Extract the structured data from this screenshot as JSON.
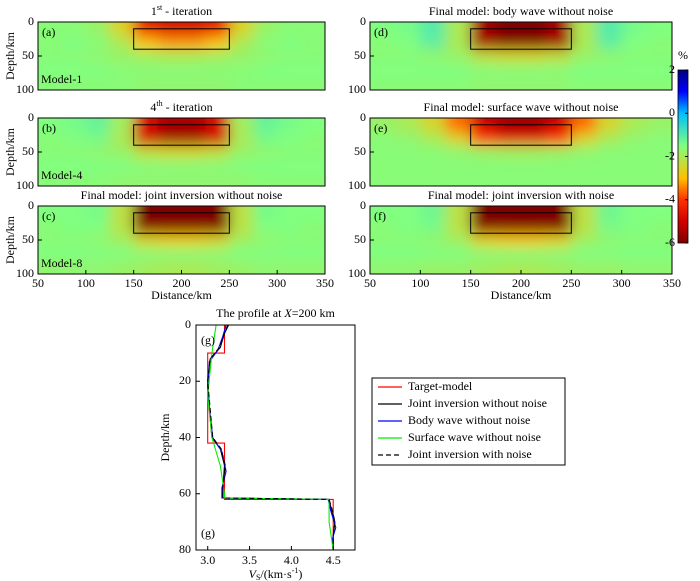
{
  "chart_data": [
    {
      "type": "heatmap",
      "title": {
        "pre": "1",
        "sup": "st",
        "post": " - iteration"
      },
      "panel_label": "(a)",
      "model_label": "Model-1",
      "ylabel": "Depth/km",
      "xlim": [
        50,
        350
      ],
      "ylim": [
        100,
        0
      ],
      "yticks": [
        0,
        50,
        100
      ],
      "box": {
        "x": [
          150,
          250
        ],
        "y": [
          10,
          40
        ]
      },
      "z": [
        [
          -1.6,
          -1.6,
          -1.8,
          -2.6,
          -4.5,
          -4.9,
          -4.9,
          -4.5,
          -2.6,
          -1.8,
          -1.6,
          -1.6
        ],
        [
          -1.6,
          -1.5,
          -1.6,
          -2.0,
          -3.0,
          -3.3,
          -3.3,
          -3.0,
          -2.0,
          -1.6,
          -1.5,
          -1.6
        ],
        [
          -1.6,
          -1.6,
          -1.7,
          -1.8,
          -1.9,
          -2.0,
          -2.0,
          -1.9,
          -1.8,
          -1.7,
          -1.6,
          -1.6
        ],
        [
          -1.5,
          -1.5,
          -1.5,
          -1.6,
          -1.6,
          -1.6,
          -1.6,
          -1.6,
          -1.6,
          -1.5,
          -1.5,
          -1.5
        ],
        [
          -1.6,
          -1.6,
          -1.6,
          -1.6,
          -1.7,
          -1.7,
          -1.7,
          -1.7,
          -1.6,
          -1.6,
          -1.6,
          -1.6
        ]
      ]
    },
    {
      "type": "heatmap",
      "title": {
        "pre": "4",
        "sup": "th",
        "post": " - iteration"
      },
      "panel_label": "(b)",
      "model_label": "Model-4",
      "ylabel": "Depth/km",
      "xlim": [
        50,
        350
      ],
      "ylim": [
        100,
        0
      ],
      "yticks": [
        0,
        50,
        100
      ],
      "box": {
        "x": [
          150,
          250
        ],
        "y": [
          10,
          40
        ]
      },
      "z": [
        [
          -1.5,
          -1.4,
          -1.2,
          -1.9,
          -4.8,
          -5.5,
          -5.5,
          -4.8,
          -1.9,
          -1.2,
          -1.4,
          -1.5
        ],
        [
          -1.6,
          -1.5,
          -1.4,
          -2.0,
          -5.0,
          -5.6,
          -5.6,
          -5.0,
          -2.0,
          -1.4,
          -1.5,
          -1.6
        ],
        [
          -1.6,
          -1.6,
          -1.7,
          -1.8,
          -2.3,
          -2.5,
          -2.5,
          -2.3,
          -1.8,
          -1.7,
          -1.6,
          -1.6
        ],
        [
          -1.5,
          -1.5,
          -1.5,
          -1.5,
          -1.6,
          -1.6,
          -1.6,
          -1.6,
          -1.5,
          -1.5,
          -1.5,
          -1.5
        ],
        [
          -1.6,
          -1.6,
          -1.6,
          -1.7,
          -1.7,
          -1.7,
          -1.7,
          -1.7,
          -1.7,
          -1.6,
          -1.6,
          -1.6
        ]
      ]
    },
    {
      "type": "heatmap",
      "title": "Final model: joint inversion without noise",
      "panel_label": "(c)",
      "model_label": "Model-8",
      "ylabel": "Depth/km",
      "xlabel": "Distance/km",
      "xlim": [
        50,
        350
      ],
      "ylim": [
        100,
        0
      ],
      "yticks": [
        0,
        50,
        100
      ],
      "xticks": [
        50,
        100,
        150,
        200,
        250,
        300,
        350
      ],
      "box": {
        "x": [
          150,
          250
        ],
        "y": [
          10,
          40
        ]
      },
      "z": [
        [
          -1.5,
          -1.5,
          -1.4,
          -2.2,
          -6.0,
          -6.0,
          -6.0,
          -6.0,
          -2.2,
          -1.4,
          -1.5,
          -1.5
        ],
        [
          -1.6,
          -1.5,
          -1.5,
          -2.2,
          -6.0,
          -6.0,
          -6.0,
          -6.0,
          -2.2,
          -1.5,
          -1.5,
          -1.6
        ],
        [
          -1.6,
          -1.6,
          -1.7,
          -1.9,
          -2.6,
          -2.8,
          -2.8,
          -2.6,
          -1.9,
          -1.7,
          -1.6,
          -1.6
        ],
        [
          -1.5,
          -1.5,
          -1.5,
          -1.5,
          -1.6,
          -1.6,
          -1.6,
          -1.6,
          -1.5,
          -1.5,
          -1.5,
          -1.5
        ],
        [
          -1.7,
          -1.7,
          -1.7,
          -1.8,
          -1.9,
          -2.0,
          -2.0,
          -1.9,
          -1.8,
          -1.7,
          -1.7,
          -1.7
        ]
      ]
    },
    {
      "type": "heatmap",
      "title": "Final model: body wave without noise",
      "panel_label": "(d)",
      "xlim": [
        50,
        350
      ],
      "ylim": [
        100,
        0
      ],
      "yticks": [
        0,
        50,
        100
      ],
      "box": {
        "x": [
          150,
          250
        ],
        "y": [
          10,
          40
        ]
      },
      "z": [
        [
          -1.5,
          -1.4,
          -1.0,
          -2.0,
          -5.5,
          -6.0,
          -6.0,
          -5.5,
          -2.0,
          -1.0,
          -1.4,
          -1.5
        ],
        [
          -1.6,
          -1.5,
          -1.1,
          -2.0,
          -5.6,
          -6.0,
          -6.0,
          -5.6,
          -2.0,
          -1.1,
          -1.5,
          -1.6
        ],
        [
          -1.6,
          -1.6,
          -1.7,
          -1.8,
          -2.3,
          -2.5,
          -2.5,
          -2.3,
          -1.8,
          -1.7,
          -1.6,
          -1.6
        ],
        [
          -1.5,
          -1.5,
          -1.5,
          -1.5,
          -1.6,
          -1.6,
          -1.6,
          -1.6,
          -1.5,
          -1.5,
          -1.5,
          -1.5
        ],
        [
          -1.6,
          -1.6,
          -1.6,
          -1.6,
          -1.7,
          -1.7,
          -1.7,
          -1.7,
          -1.6,
          -1.6,
          -1.6,
          -1.6
        ]
      ]
    },
    {
      "type": "heatmap",
      "title": "Final model: surface wave without noise",
      "panel_label": "(e)",
      "xlim": [
        50,
        350
      ],
      "ylim": [
        100,
        0
      ],
      "yticks": [
        0,
        50,
        100
      ],
      "box": {
        "x": [
          150,
          250
        ],
        "y": [
          10,
          40
        ]
      },
      "z": [
        [
          -1.8,
          -2.0,
          -2.5,
          -3.6,
          -5.0,
          -5.6,
          -5.6,
          -5.0,
          -3.6,
          -2.5,
          -2.0,
          -1.8
        ],
        [
          -1.6,
          -1.7,
          -2.0,
          -2.6,
          -4.0,
          -4.6,
          -4.6,
          -4.0,
          -2.6,
          -2.0,
          -1.7,
          -1.6
        ],
        [
          -1.6,
          -1.6,
          -1.6,
          -1.7,
          -1.8,
          -1.9,
          -1.9,
          -1.8,
          -1.7,
          -1.6,
          -1.6,
          -1.6
        ],
        [
          -1.6,
          -1.6,
          -1.6,
          -1.6,
          -1.6,
          -1.6,
          -1.6,
          -1.6,
          -1.6,
          -1.6,
          -1.6,
          -1.6
        ],
        [
          -1.6,
          -1.6,
          -1.6,
          -1.6,
          -1.6,
          -1.6,
          -1.6,
          -1.6,
          -1.6,
          -1.6,
          -1.6,
          -1.6
        ]
      ]
    },
    {
      "type": "heatmap",
      "title": "Final model: joint inversion with noise",
      "panel_label": "(f)",
      "xlabel": "Distance/km",
      "xlim": [
        50,
        350
      ],
      "ylim": [
        100,
        0
      ],
      "yticks": [
        0,
        50,
        100
      ],
      "xticks": [
        50,
        100,
        150,
        200,
        250,
        300,
        350
      ],
      "box": {
        "x": [
          150,
          250
        ],
        "y": [
          10,
          40
        ]
      },
      "z": [
        [
          -1.5,
          -1.5,
          -1.3,
          -2.2,
          -6.0,
          -6.0,
          -6.0,
          -6.0,
          -2.2,
          -1.3,
          -1.5,
          -1.5
        ],
        [
          -1.6,
          -1.5,
          -1.4,
          -2.2,
          -6.0,
          -6.0,
          -6.0,
          -6.0,
          -2.2,
          -1.4,
          -1.5,
          -1.6
        ],
        [
          -1.6,
          -1.6,
          -1.7,
          -1.9,
          -2.7,
          -2.9,
          -2.9,
          -2.7,
          -1.9,
          -1.7,
          -1.6,
          -1.6
        ],
        [
          -1.5,
          -1.5,
          -1.5,
          -1.5,
          -1.6,
          -1.6,
          -1.6,
          -1.6,
          -1.5,
          -1.5,
          -1.5,
          -1.5
        ],
        [
          -1.7,
          -1.7,
          -1.8,
          -1.8,
          -1.9,
          -2.0,
          -2.0,
          -1.9,
          -1.8,
          -1.8,
          -1.7,
          -1.7
        ]
      ]
    },
    {
      "type": "line",
      "title": {
        "pre": "The profile at ",
        "italic": "X",
        "post": "=200 km"
      },
      "panel_labels": [
        "(g)",
        "(g)"
      ],
      "ylabel": "Depth/km",
      "xlabel": {
        "italic": "V",
        "sub": "S",
        "post": "/(km·s",
        "sup": "-1",
        "end": ")"
      },
      "xlim": [
        2.86,
        4.76
      ],
      "ylim": [
        80,
        0
      ],
      "yticks": [
        0,
        20,
        40,
        60,
        80
      ],
      "xticks": [
        {
          "value": 3,
          "label": "3.0"
        },
        3.5,
        {
          "value": 4,
          "label": "4.0"
        },
        4.5
      ],
      "series": [
        {
          "name": "Target-model",
          "color": "#ff0000",
          "depth": [
            0,
            10,
            10,
            42,
            42,
            62,
            62,
            80
          ],
          "values": [
            3.2,
            3.2,
            3.0,
            3.0,
            3.2,
            3.2,
            4.5,
            4.5
          ]
        },
        {
          "name": "Joint inversion without noise",
          "color": "#000000",
          "depth": [
            0,
            3,
            8,
            12,
            20,
            30,
            40,
            44,
            50,
            58,
            61.5,
            62,
            66,
            70,
            75,
            80
          ],
          "values": [
            3.25,
            3.2,
            3.15,
            3.03,
            3.0,
            3.02,
            3.05,
            3.15,
            3.2,
            3.18,
            3.18,
            4.45,
            4.48,
            4.52,
            4.5,
            4.5
          ]
        },
        {
          "name": "Body wave without noise",
          "color": "#0000ff",
          "depth": [
            0,
            4,
            9,
            13,
            22,
            32,
            40,
            45,
            52,
            58,
            61.5,
            62,
            66,
            72,
            76,
            80
          ],
          "values": [
            3.22,
            3.18,
            3.12,
            3.02,
            3.0,
            3.03,
            3.06,
            3.17,
            3.22,
            3.17,
            3.17,
            4.44,
            4.47,
            4.53,
            4.49,
            4.5
          ]
        },
        {
          "name": "Surface wave without noise",
          "color": "#00ee00",
          "depth": [
            0,
            10,
            25,
            40,
            50,
            60,
            61.5,
            62,
            70,
            80
          ],
          "values": [
            3.1,
            3.05,
            3.0,
            3.05,
            3.15,
            3.2,
            3.2,
            4.45,
            4.45,
            4.5
          ]
        },
        {
          "name": "Joint inversion with noise",
          "color": "#000000",
          "dash": true,
          "depth": [
            0,
            3,
            8,
            12,
            20,
            30,
            40,
            44,
            50,
            58,
            61.5,
            62,
            66,
            70,
            75,
            80
          ],
          "values": [
            3.24,
            3.2,
            3.14,
            3.03,
            3.0,
            3.03,
            3.06,
            3.16,
            3.21,
            3.18,
            3.18,
            4.45,
            4.49,
            4.52,
            4.5,
            4.5
          ]
        }
      ]
    }
  ],
  "colorbar": {
    "unit": "%",
    "lim": [
      -6,
      2
    ],
    "ticks": [
      2,
      0,
      -2,
      -4,
      -6
    ],
    "colorscale": [
      [
        2,
        "#00007f"
      ],
      [
        1,
        "#0000ff"
      ],
      [
        0,
        "#00bfff"
      ],
      [
        -1.5,
        "#80ff80"
      ],
      [
        -3,
        "#ffbf00"
      ],
      [
        -4,
        "#ff3000"
      ],
      [
        -5,
        "#d00000"
      ],
      [
        -6,
        "#7f0000"
      ]
    ]
  }
}
